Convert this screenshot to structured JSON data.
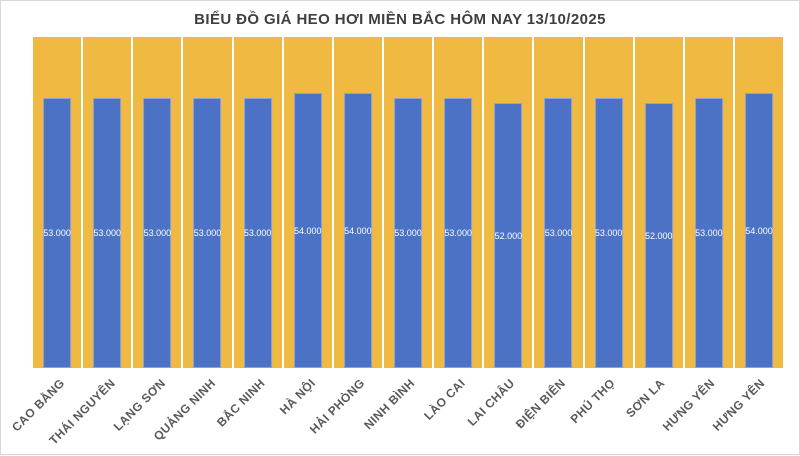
{
  "chart_data": {
    "type": "bar",
    "title": "BIỂU ĐỒ GIÁ HEO HƠI MIỀN BẮC HÔM NAY 13/10/2025",
    "categories": [
      "CAO BẰNG",
      "THÁI NGUYÊN",
      "LẠNG SƠN",
      "QUẢNG NINH",
      "BẮC NINH",
      "HÀ NỘI",
      "HẢI PHÒNG",
      "NINH BÌNH",
      "LÀO CAI",
      "LAI CHÂU",
      "ĐIỆN BIÊN",
      "PHÚ THỌ",
      "SƠN LA",
      "HƯNG YÊN",
      "HƯNG YÊN"
    ],
    "values": [
      53000,
      53000,
      53000,
      53000,
      53000,
      54000,
      54000,
      53000,
      53000,
      52000,
      53000,
      53000,
      52000,
      53000,
      54000
    ],
    "data_labels": [
      "53.000",
      "53.000",
      "53.000",
      "53.000",
      "53.000",
      "54.000",
      "54.000",
      "53.000",
      "53.000",
      "52.000",
      "53.000",
      "53.000",
      "52.000",
      "53.000",
      "54.000"
    ],
    "xlabel": "",
    "ylabel": "",
    "ylim": [
      0,
      65000
    ],
    "legend_position": "none",
    "grid": "vertical white gridlines between categories",
    "colors": {
      "bar": "#4c72c6",
      "plot_background": "#f0b941",
      "gridline": "#ffffff",
      "data_label_text": "#ffffff",
      "axis_label_text": "#595959",
      "title_text": "#3f3f3f",
      "page_background": "#ffffff"
    }
  }
}
